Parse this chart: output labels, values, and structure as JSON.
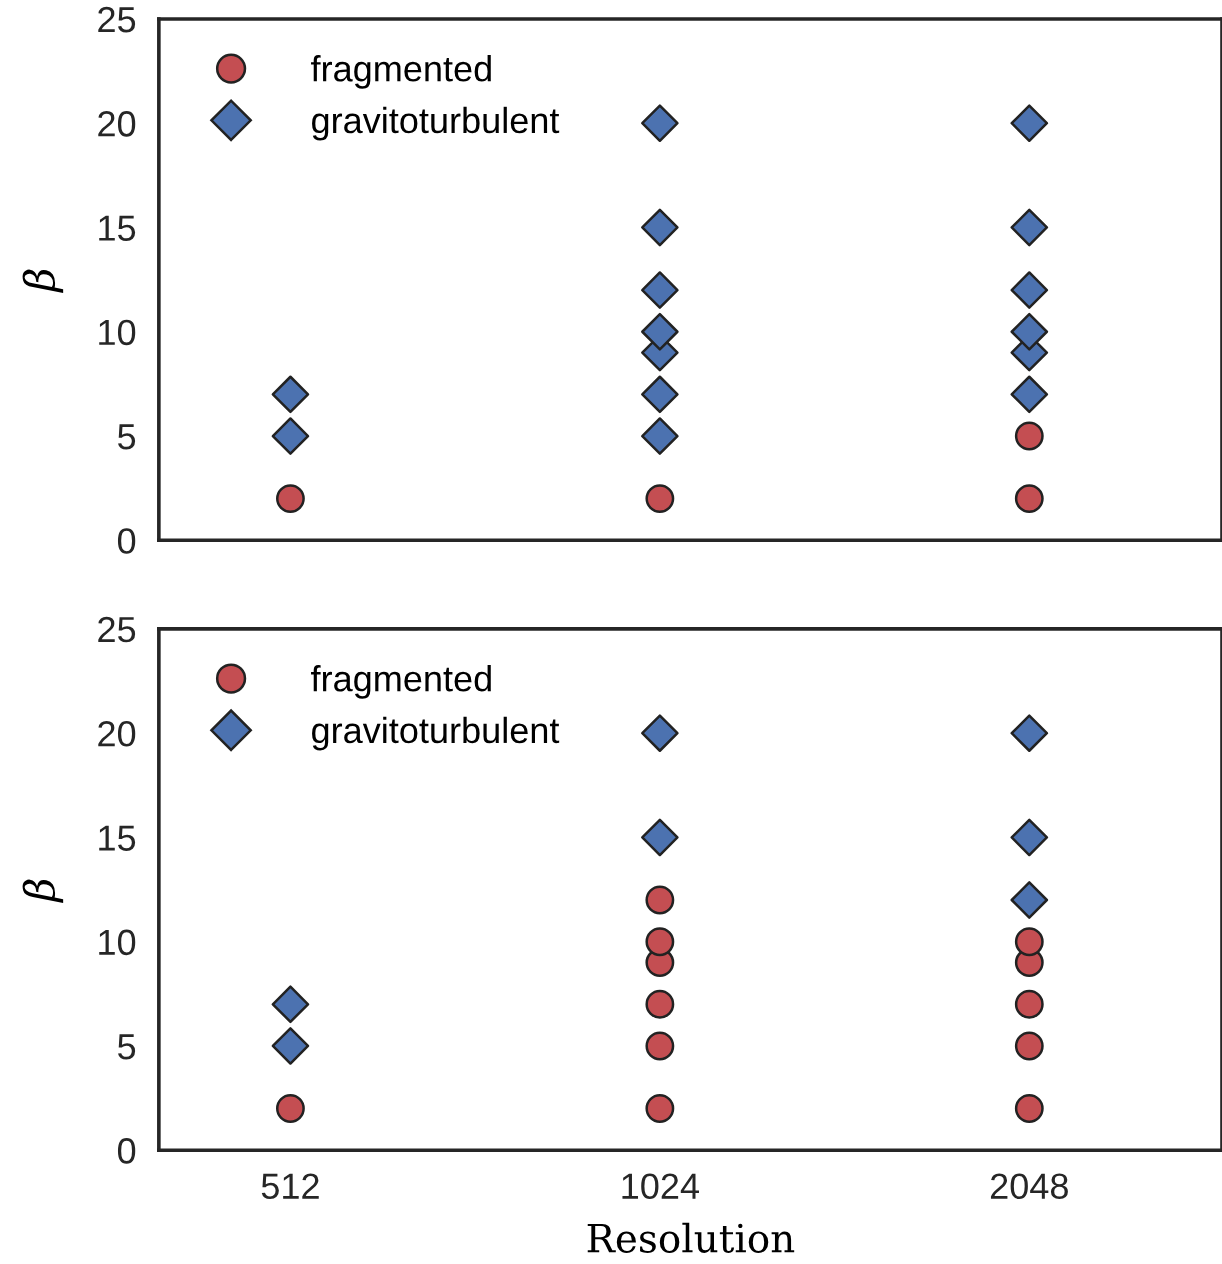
{
  "chart_data": [
    {
      "type": "scatter",
      "ylabel": "β",
      "log": "x",
      "xlim": [
        400,
        2940
      ],
      "xticks": [
        512,
        1024,
        2048
      ],
      "ylim": [
        0,
        25
      ],
      "yticks": [
        0,
        5,
        10,
        15,
        20,
        25
      ],
      "grid": false,
      "legend": "top left",
      "tick_labels": "y",
      "series": [
        {
          "name": "fragmented",
          "color": "#c44e52",
          "marker": "circle",
          "x": [
            512,
            1024,
            2048,
            2048
          ],
          "values": [
            2,
            2,
            2,
            5
          ]
        },
        {
          "name": "gravitoturbulent",
          "color": "#4c72b0",
          "marker": "diamond",
          "x": [
            512,
            512,
            1024,
            1024,
            1024,
            1024,
            1024,
            1024,
            1024,
            2048,
            2048,
            2048,
            2048,
            2048,
            2048
          ],
          "values": [
            5,
            7,
            5,
            7,
            9,
            10,
            12,
            15,
            20,
            7,
            9,
            10,
            12,
            15,
            20
          ]
        }
      ]
    },
    {
      "type": "scatter",
      "ylabel": "β",
      "xlabel": "Resolution",
      "log": "x",
      "xlim": [
        400,
        2940
      ],
      "xticks": [
        512,
        1024,
        2048
      ],
      "ylim": [
        0,
        25
      ],
      "yticks": [
        0,
        5,
        10,
        15,
        20,
        25
      ],
      "grid": false,
      "legend": "top left",
      "series": [
        {
          "name": "fragmented",
          "color": "#c44e52",
          "marker": "circle",
          "x": [
            512,
            1024,
            1024,
            1024,
            1024,
            1024,
            1024,
            2048,
            2048,
            2048,
            2048,
            2048
          ],
          "values": [
            2,
            2,
            5,
            7,
            9,
            10,
            12,
            2,
            5,
            7,
            9,
            10
          ]
        },
        {
          "name": "gravitoturbulent",
          "color": "#4c72b0",
          "marker": "diamond",
          "x": [
            512,
            512,
            1024,
            1024,
            2048,
            2048,
            2048
          ],
          "values": [
            5,
            7,
            15,
            20,
            12,
            15,
            20
          ]
        }
      ]
    }
  ]
}
